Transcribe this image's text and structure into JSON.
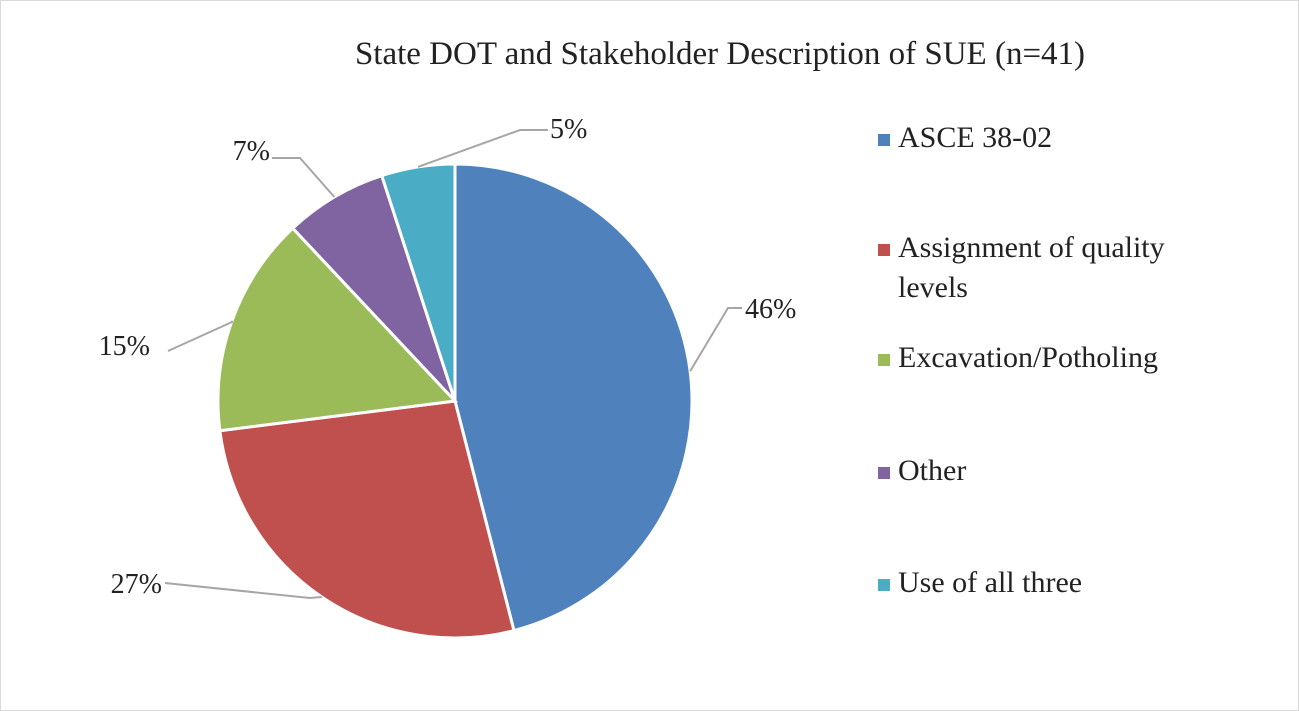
{
  "chart_data": {
    "type": "pie",
    "title": "State DOT and Stakeholder Description of SUE (n=41)",
    "categories": [
      "ASCE 38-02",
      "Assignment of quality levels",
      "Excavation/Potholing",
      "Other",
      "Use of all three"
    ],
    "values": [
      46,
      27,
      15,
      7,
      5
    ],
    "value_labels": [
      "46%",
      "27%",
      "15%",
      "7%",
      "5%"
    ],
    "colors": [
      "#4f81bd",
      "#c0504d",
      "#9bbb59",
      "#8064a2",
      "#4bacc6"
    ],
    "legend": "right"
  }
}
